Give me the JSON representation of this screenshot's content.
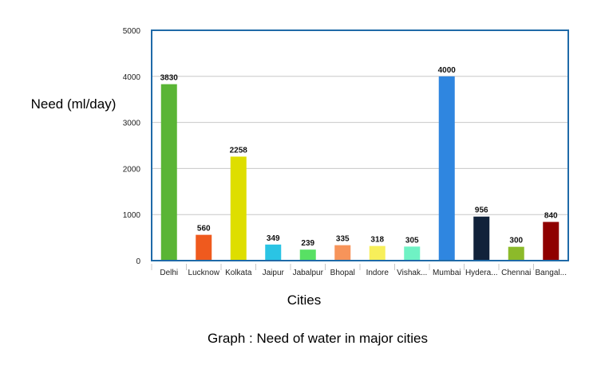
{
  "chart_data": {
    "type": "bar",
    "categories": [
      "Delhi",
      "Lucknow",
      "Kolkata",
      "Jaipur",
      "Jabalpur",
      "Bhopal",
      "Indore",
      "Vishak...",
      "Mumbai",
      "Hydera...",
      "Chennai",
      "Bangal..."
    ],
    "values": [
      3830,
      560,
      2258,
      349,
      239,
      335,
      318,
      305,
      4000,
      956,
      300,
      840
    ],
    "colors": [
      "#5ab535",
      "#ef5a1e",
      "#dede00",
      "#2ac4e4",
      "#58e064",
      "#f7945a",
      "#f7ef5a",
      "#6ff2c4",
      "#2f86e0",
      "#11223a",
      "#8cba2a",
      "#8f0000"
    ],
    "title": "",
    "xlabel": "Cities",
    "ylabel": "Need (ml/day)",
    "ylim": [
      0,
      5000
    ],
    "yticks": [
      0,
      1000,
      2000,
      3000,
      4000,
      5000
    ],
    "grid": true,
    "frame_color": "#1f6aa8",
    "caption": "Graph : Need of water in major cities"
  }
}
